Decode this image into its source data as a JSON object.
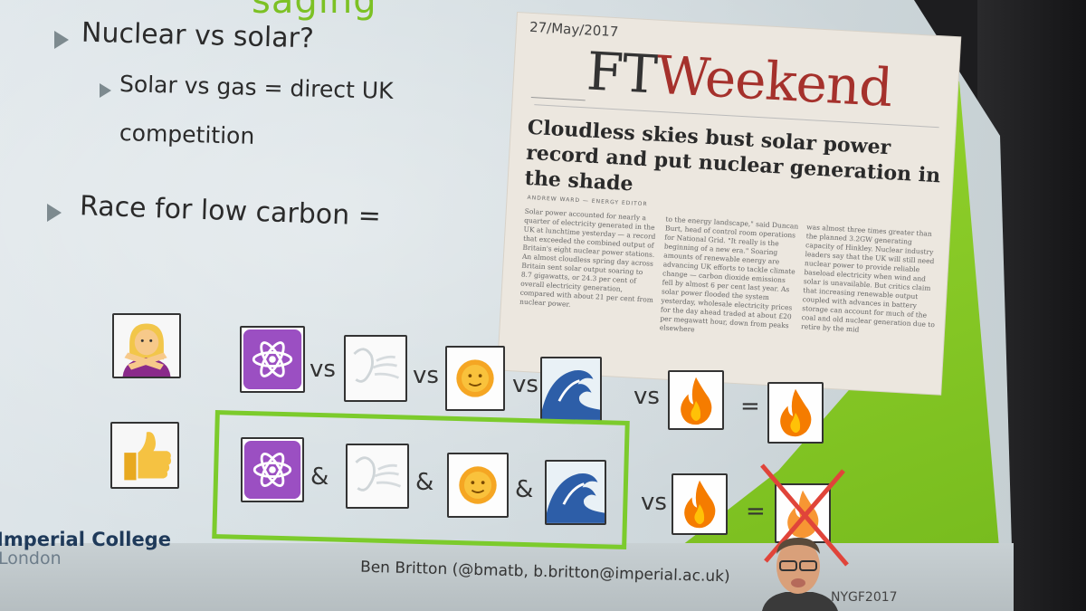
{
  "slide": {
    "title_fragment": "saging",
    "bullets": [
      {
        "text": "Nuclear vs solar?",
        "level": 1
      },
      {
        "text": "Solar vs gas = direct UK",
        "level": 2
      },
      {
        "text": "competition",
        "level": 2
      },
      {
        "text": "Race for low carbon =",
        "level": 1
      }
    ],
    "clipping": {
      "date": "27/May/2017",
      "masthead_ft": "FT",
      "masthead_weekend": "Weekend",
      "headline": "Cloudless skies bust solar power record and put nuclear generation in the shade",
      "byline": "ANDREW WARD — ENERGY EDITOR",
      "body_col1": "Solar power accounted for nearly a quarter of electricity generated in the UK at lunchtime yesterday — a record that exceeded the combined output of Britain's eight nuclear power stations. An almost cloudless spring day across Britain sent solar output soaring to 8.7 gigawatts, or 24.3 per cent of overall electricity generation, compared with about 21 per cent from nuclear power.",
      "body_col2": "to the energy landscape,\" said Duncan Burt, head of control room operations for National Grid. \"It really is the beginning of a new era.\" Soaring amounts of renewable energy are advancing UK efforts to tackle climate change — carbon dioxide emissions fell by almost 6 per cent last year. As solar power flooded the system yesterday, wholesale electricity prices for the day ahead traded at about £20 per megawatt hour, down from peaks elsewhere",
      "body_col3": "was almost three times greater than the planned 3.2GW generating capacity of Hinkley. Nuclear industry leaders say that the UK will still need nuclear power to provide reliable baseload electricity when wind and solar is unavailable. But critics claim that increasing renewable output coupled with advances in battery storage can account for much of the coal and old nuclear generation due to retire by the mid"
    },
    "row1": {
      "lead_icon": "woman-gesturing-no-icon",
      "items": [
        "atom-symbol-icon",
        "wind-face-icon",
        "sun-with-face-icon",
        "water-wave-icon",
        "fire-icon"
      ],
      "operators": [
        "vs",
        "vs",
        "vs",
        "vs"
      ],
      "equals": "=",
      "result_icon": "fire-icon"
    },
    "row2": {
      "lead_icon": "thumbs-up-icon",
      "items": [
        "atom-symbol-icon",
        "wind-face-icon",
        "sun-with-face-icon",
        "water-wave-icon"
      ],
      "operators": [
        "&",
        "&",
        "&"
      ],
      "vs": "vs",
      "opponent_icon": "fire-icon",
      "equals": "=",
      "result_icon": "fire-crossed-out-icon"
    },
    "footer": {
      "logo_line1": "Imperial College",
      "logo_line2": "London",
      "presenter": "Ben Britton (@bmatb, b.britton@imperial.ac.uk)",
      "event_tag": "NYGF2017"
    },
    "colors": {
      "accent_green": "#7cc124",
      "fire_orange": "#f57c00",
      "atom_purple": "#9b4fc2",
      "ft_red": "#a5312c",
      "cross_red": "#e0443a"
    }
  }
}
